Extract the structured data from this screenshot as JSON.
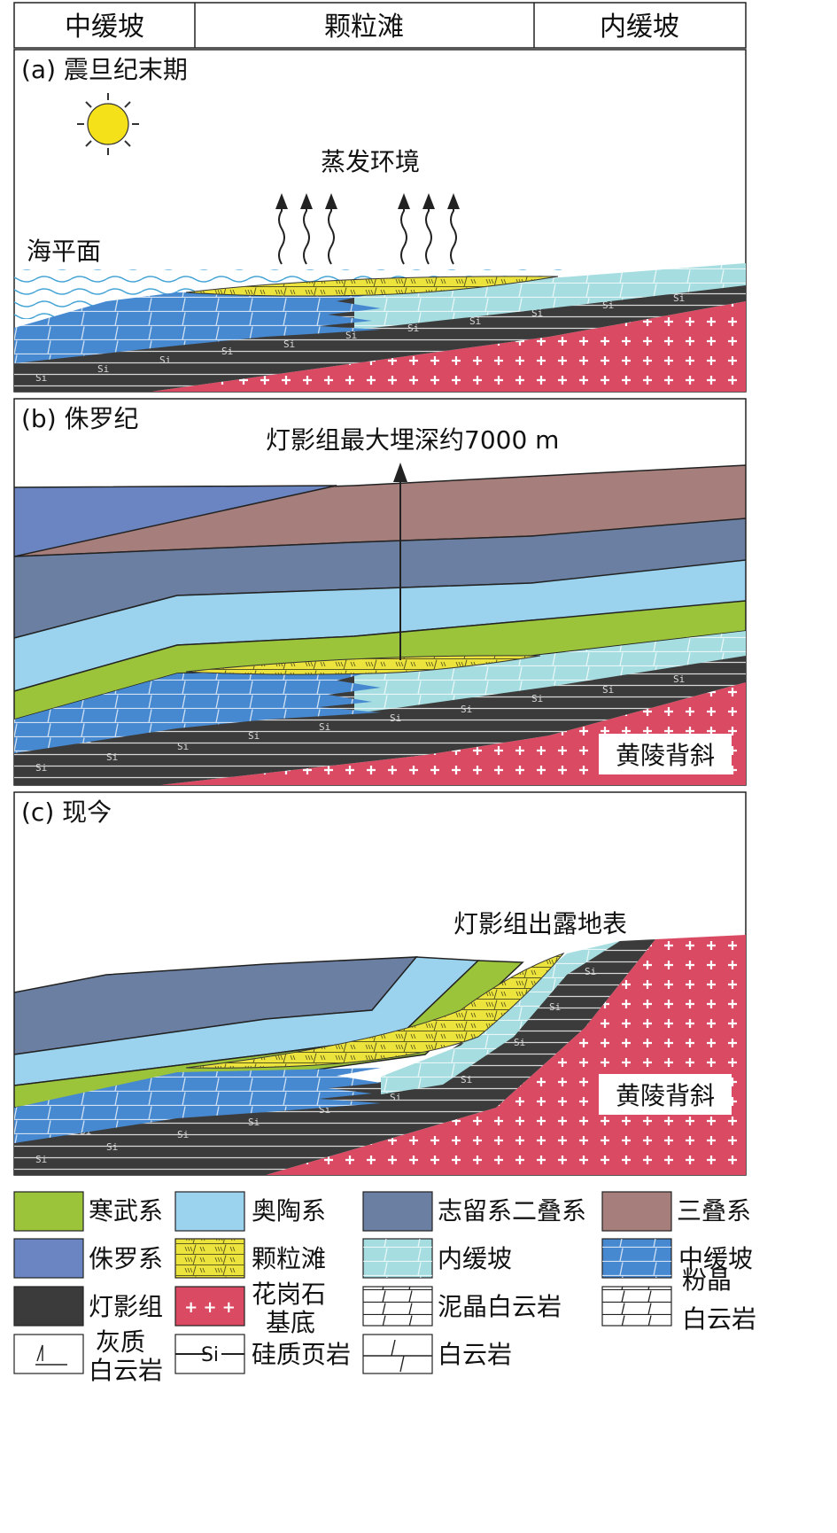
{
  "header": {
    "zones": [
      "中缓坡",
      "颗粒滩",
      "内缓坡"
    ]
  },
  "panels": {
    "a": {
      "label": "(a) 震旦纪末期",
      "evaporation": "蒸发环境",
      "sea_level": "海平面"
    },
    "b": {
      "label": "(b) 侏罗纪",
      "burial": "灯影组最大埋深约7000 m",
      "anticline": "黄陵背斜"
    },
    "c": {
      "label": "(c) 现今",
      "outcrop": "灯影组出露地表",
      "anticline": "黄陵背斜"
    }
  },
  "legend": {
    "cambrian": "寒武系",
    "ordovician": "奥陶系",
    "silurian_permian": "志留系二叠系",
    "triassic": "三叠系",
    "jurassic": "侏罗系",
    "grain_shoal": "颗粒滩",
    "inner_ramp": "内缓坡",
    "middle_ramp": "中缓坡",
    "dengying": "灯影组",
    "granite_1": "花岗石",
    "granite_2": "基底",
    "micritic_dolomite": "泥晶白云岩",
    "silty_dolomite_1": "粉晶",
    "silty_dolomite_2": "白云岩",
    "calc_dolomite_1": "灰质",
    "calc_dolomite_2": "白云岩",
    "siliceous_shale": "硅质页岩",
    "dolomite": "白云岩",
    "si_mark": "Si"
  },
  "colors": {
    "cambrian": "#9cc43a",
    "ordovician": "#9bd3ef",
    "silurian_permian": "#6a7fa1",
    "triassic": "#a67e7b",
    "jurassic": "#6a85c2",
    "grain_shoal": "#ece33c",
    "inner_ramp": "#a5dde0",
    "middle_ramp": "#4689d1",
    "dengying": "#3b3b3b",
    "granite": "#da4b63",
    "sun": "#f4e11a",
    "sea": "#45a4d6"
  }
}
